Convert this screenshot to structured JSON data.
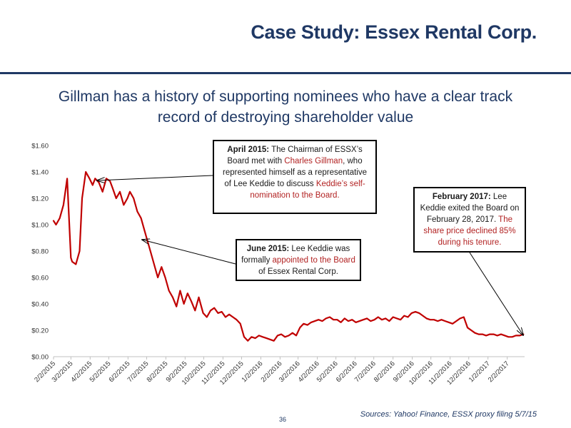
{
  "slide": {
    "title": "Case Study: Essex Rental Corp.",
    "subtitle_line1": "Gillman has a history of supporting nominees who have a clear track",
    "subtitle_line2": "record of destroying shareholder value",
    "page_number": "36",
    "sources": "Sources: Yahoo! Finance, ESSX proxy filing 5/7/15"
  },
  "callouts": {
    "april": {
      "head": "April 2015:",
      "t1": " The Chairman of ESSX’s Board met with ",
      "t2": "Charles Gillman",
      "t3": ", who represented himself as a representative of Lee Keddie to discuss ",
      "t4": "Keddie’s self-nomination to the Board."
    },
    "june": {
      "head": "June 2015:",
      "t1": " Lee Keddie was formally ",
      "t2": "appointed to the Board",
      "t3": " of Essex Rental Corp."
    },
    "feb": {
      "head": "February 2017:",
      "t1": " Lee Keddie exited the Board on February 28, 2017.  ",
      "t2": "The share price declined 85% during his tenure."
    }
  },
  "colors": {
    "line": "#c00000",
    "title": "#1f3864",
    "highlight": "#b22222"
  },
  "chart_data": {
    "type": "line",
    "title": "",
    "xlabel": "",
    "ylabel": "",
    "ylim": [
      0,
      1.6
    ],
    "yticks": [
      0,
      0.2,
      0.4,
      0.6,
      0.8,
      1.0,
      1.2,
      1.4,
      1.6
    ],
    "ytick_labels": [
      "$0.00",
      "$0.20",
      "$0.40",
      "$0.60",
      "$0.80",
      "$1.00",
      "$1.20",
      "$1.40",
      "$1.60"
    ],
    "xticks": [
      "2/2/2015",
      "3/2/2015",
      "4/2/2015",
      "5/2/2015",
      "6/2/2015",
      "7/2/2015",
      "8/2/2015",
      "9/2/2015",
      "10/2/2015",
      "11/2/2015",
      "12/2/2015",
      "1/2/2016",
      "2/2/2016",
      "3/2/2016",
      "4/2/2016",
      "5/2/2016",
      "6/2/2016",
      "7/2/2016",
      "8/2/2016",
      "9/2/2016",
      "10/2/2016",
      "11/2/2016",
      "12/2/2016",
      "1/2/2017",
      "2/2/2017"
    ],
    "grid": false,
    "legend": "none",
    "series": [
      {
        "x": [
          "2015-02-02",
          "2015-02-06",
          "2015-02-12",
          "2015-02-18",
          "2015-02-24",
          "2015-03-02",
          "2015-03-04",
          "2015-03-10",
          "2015-03-16",
          "2015-03-20",
          "2015-03-26",
          "2015-04-01",
          "2015-04-06",
          "2015-04-10",
          "2015-04-16",
          "2015-04-22",
          "2015-04-28",
          "2015-05-04",
          "2015-05-08",
          "2015-05-14",
          "2015-05-20",
          "2015-05-26",
          "2015-06-01",
          "2015-06-05",
          "2015-06-11",
          "2015-06-17",
          "2015-06-23",
          "2015-06-29",
          "2015-07-02",
          "2015-07-08",
          "2015-07-14",
          "2015-07-20",
          "2015-07-26",
          "2015-08-01",
          "2015-08-07",
          "2015-08-13",
          "2015-08-19",
          "2015-08-25",
          "2015-08-31",
          "2015-09-06",
          "2015-09-12",
          "2015-09-18",
          "2015-09-24",
          "2015-10-01",
          "2015-10-07",
          "2015-10-13",
          "2015-10-19",
          "2015-10-25",
          "2015-10-31",
          "2015-11-06",
          "2015-11-12",
          "2015-11-18",
          "2015-11-24",
          "2015-11-30",
          "2015-12-06",
          "2015-12-12",
          "2015-12-18",
          "2015-12-24",
          "2015-12-30",
          "2016-01-05",
          "2016-01-11",
          "2016-01-17",
          "2016-01-23",
          "2016-01-29",
          "2016-02-04",
          "2016-02-10",
          "2016-02-16",
          "2016-02-22",
          "2016-02-28",
          "2016-03-05",
          "2016-03-11",
          "2016-03-17",
          "2016-03-23",
          "2016-03-29",
          "2016-04-04",
          "2016-04-10",
          "2016-04-16",
          "2016-04-22",
          "2016-04-28",
          "2016-05-04",
          "2016-05-10",
          "2016-05-16",
          "2016-05-22",
          "2016-05-28",
          "2016-06-03",
          "2016-06-09",
          "2016-06-15",
          "2016-06-21",
          "2016-06-27",
          "2016-07-03",
          "2016-07-09",
          "2016-07-15",
          "2016-07-21",
          "2016-07-27",
          "2016-08-02",
          "2016-08-08",
          "2016-08-14",
          "2016-08-20",
          "2016-08-26",
          "2016-09-01",
          "2016-09-07",
          "2016-09-13",
          "2016-09-19",
          "2016-09-25",
          "2016-10-01",
          "2016-10-07",
          "2016-10-13",
          "2016-10-19",
          "2016-10-25",
          "2016-10-31",
          "2016-11-06",
          "2016-11-12",
          "2016-11-18",
          "2016-11-24",
          "2016-11-30",
          "2016-12-06",
          "2016-12-12",
          "2016-12-18",
          "2016-12-24",
          "2016-12-30",
          "2017-01-05",
          "2017-01-11",
          "2017-01-17",
          "2017-01-23",
          "2017-01-29",
          "2017-02-04",
          "2017-02-10",
          "2017-02-16",
          "2017-02-22",
          "2017-02-28"
        ],
        "values": [
          1.03,
          1.0,
          1.05,
          1.15,
          1.35,
          0.75,
          0.72,
          0.7,
          0.8,
          1.2,
          1.4,
          1.35,
          1.3,
          1.35,
          1.32,
          1.25,
          1.35,
          1.33,
          1.28,
          1.2,
          1.25,
          1.15,
          1.2,
          1.25,
          1.2,
          1.1,
          1.05,
          0.95,
          0.9,
          0.8,
          0.7,
          0.6,
          0.68,
          0.6,
          0.5,
          0.45,
          0.38,
          0.5,
          0.4,
          0.48,
          0.42,
          0.35,
          0.45,
          0.33,
          0.3,
          0.35,
          0.37,
          0.33,
          0.34,
          0.3,
          0.32,
          0.3,
          0.28,
          0.25,
          0.15,
          0.12,
          0.15,
          0.14,
          0.16,
          0.15,
          0.14,
          0.13,
          0.12,
          0.16,
          0.17,
          0.15,
          0.16,
          0.18,
          0.16,
          0.22,
          0.25,
          0.24,
          0.26,
          0.27,
          0.28,
          0.27,
          0.29,
          0.3,
          0.28,
          0.28,
          0.26,
          0.29,
          0.27,
          0.28,
          0.26,
          0.27,
          0.28,
          0.29,
          0.27,
          0.28,
          0.3,
          0.28,
          0.29,
          0.27,
          0.3,
          0.29,
          0.28,
          0.31,
          0.3,
          0.33,
          0.34,
          0.33,
          0.31,
          0.29,
          0.28,
          0.28,
          0.27,
          0.28,
          0.27,
          0.26,
          0.25,
          0.27,
          0.29,
          0.3,
          0.22,
          0.2,
          0.18,
          0.17,
          0.17,
          0.16,
          0.17,
          0.17,
          0.16,
          0.17,
          0.16,
          0.15,
          0.15,
          0.16,
          0.16,
          0.17
        ]
      }
    ]
  }
}
